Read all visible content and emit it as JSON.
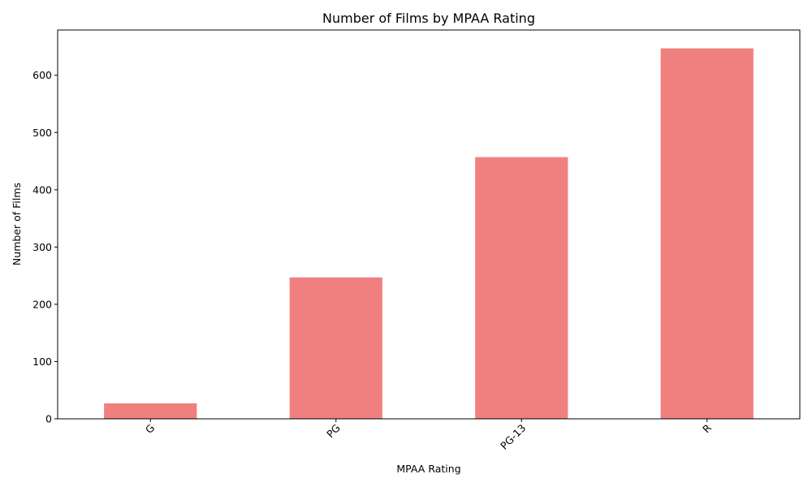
{
  "chart_data": {
    "type": "bar",
    "title": "Number of Films by MPAA Rating",
    "xlabel": "MPAA Rating",
    "ylabel": "Number of Films",
    "categories": [
      "G",
      "PG",
      "PG-13",
      "R"
    ],
    "values": [
      27,
      247,
      457,
      647
    ],
    "ylim": [
      0,
      679
    ],
    "yticks": [
      0,
      100,
      200,
      300,
      400,
      500,
      600
    ],
    "bar_color": "#f08080",
    "grid": false,
    "legend": "none",
    "xtick_rotation": 45
  }
}
